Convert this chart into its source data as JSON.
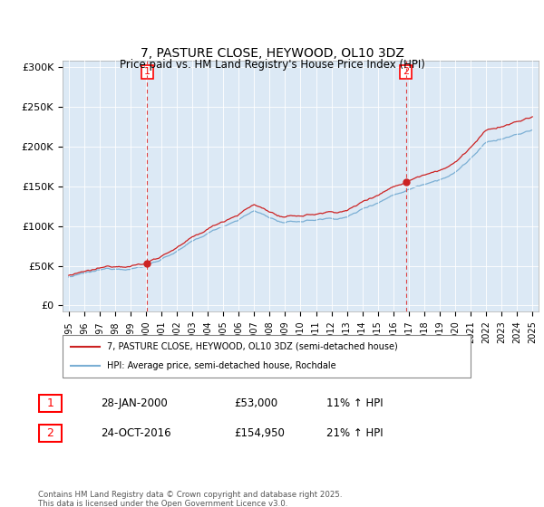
{
  "title": "7, PASTURE CLOSE, HEYWOOD, OL10 3DZ",
  "subtitle": "Price paid vs. HM Land Registry's House Price Index (HPI)",
  "legend_line1": "7, PASTURE CLOSE, HEYWOOD, OL10 3DZ (semi-detached house)",
  "legend_line2": "HPI: Average price, semi-detached house, Rochdale",
  "annotation1_label": "1",
  "annotation1_date": "28-JAN-2000",
  "annotation1_price": "£53,000",
  "annotation1_hpi": "11% ↑ HPI",
  "annotation1_year": 2000.07,
  "annotation1_value": 53000,
  "annotation2_label": "2",
  "annotation2_date": "24-OCT-2016",
  "annotation2_price": "£154,950",
  "annotation2_hpi": "21% ↑ HPI",
  "annotation2_year": 2016.82,
  "annotation2_value": 154950,
  "yticks": [
    0,
    50000,
    100000,
    150000,
    200000,
    250000,
    300000
  ],
  "ytick_labels": [
    "£0",
    "£50K",
    "£100K",
    "£150K",
    "£200K",
    "£250K",
    "£300K"
  ],
  "hpi_color": "#7bafd4",
  "price_color": "#cc2222",
  "dashed_line_color": "#dd4444",
  "plot_bg_color": "#dce9f5",
  "background_color": "#ffffff",
  "footnote": "Contains HM Land Registry data © Crown copyright and database right 2025.\nThis data is licensed under the Open Government Licence v3.0.",
  "xlim_start": 1994.6,
  "xlim_end": 2025.4,
  "ylim_min": -8000,
  "ylim_max": 308000
}
